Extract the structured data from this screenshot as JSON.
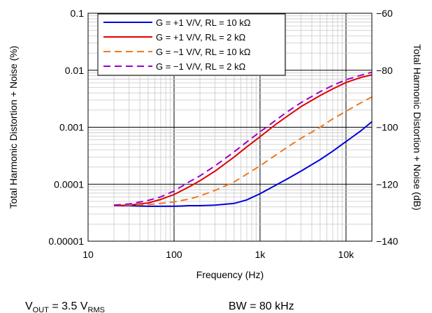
{
  "chart_data": {
    "type": "line",
    "title": "",
    "xlabel": "Frequency (Hz)",
    "ylabel": "Total Harmonic Distortion + Noise (%)",
    "ylabel_right": "Total Harmonic Distortion + Noise (dB)",
    "x_scale": "log",
    "y_scale": "log",
    "xlim": [
      10,
      20000
    ],
    "ylim": [
      1e-05,
      0.1
    ],
    "ylim_right": [
      -140,
      -60
    ],
    "grid": true,
    "legend_position": "top",
    "x_ticks": [
      10,
      100,
      1000,
      10000
    ],
    "x_tick_labels": [
      "10",
      "100",
      "1k",
      "10k"
    ],
    "y_ticks": [
      1e-05,
      0.0001,
      0.001,
      0.01,
      0.1
    ],
    "y_tick_labels": [
      "0.00001",
      "0.0001",
      "0.001",
      "0.01",
      "0.1"
    ],
    "y_ticks_right": [
      -140,
      -120,
      -100,
      -80,
      -60
    ],
    "y_tick_labels_right": [
      "−140",
      "−120",
      "−100",
      "−80",
      "−60"
    ],
    "series": [
      {
        "name": "G = +1 V/V, RL = 10 kΩ",
        "color": "#0000dd",
        "dash": "solid",
        "x": [
          20,
          30,
          50,
          70,
          100,
          150,
          200,
          300,
          500,
          700,
          1000,
          1500,
          2000,
          3000,
          5000,
          7000,
          10000,
          15000,
          20000
        ],
        "y": [
          4.2e-05,
          4.2e-05,
          4.1e-05,
          4.1e-05,
          4.1e-05,
          4.2e-05,
          4.2e-05,
          4.3e-05,
          4.6e-05,
          5.3e-05,
          6.8e-05,
          9.5e-05,
          0.00012,
          0.00017,
          0.00027,
          0.00038,
          0.00056,
          0.00087,
          0.00125
        ]
      },
      {
        "name": "G = +1 V/V, RL = 2 kΩ",
        "color": "#e00000",
        "dash": "solid",
        "x": [
          20,
          30,
          50,
          70,
          100,
          150,
          200,
          300,
          500,
          700,
          1000,
          1500,
          2000,
          3000,
          5000,
          7000,
          10000,
          15000,
          20000
        ],
        "y": [
          4.2e-05,
          4.3e-05,
          4.7e-05,
          5.4e-05,
          6.6e-05,
          9e-05,
          0.000115,
          0.00017,
          0.0003,
          0.00045,
          0.00068,
          0.0011,
          0.0015,
          0.0023,
          0.0036,
          0.0047,
          0.0061,
          0.0075,
          0.0083
        ]
      },
      {
        "name": "G = −1 V/V, RL = 10 kΩ",
        "color": "#f07820",
        "dash": "dashed",
        "x": [
          20,
          30,
          50,
          70,
          100,
          150,
          200,
          300,
          500,
          700,
          1000,
          1500,
          2000,
          3000,
          5000,
          7000,
          10000,
          15000,
          20000
        ],
        "y": [
          4.3e-05,
          4.3e-05,
          4.4e-05,
          4.6e-05,
          4.9e-05,
          5.5e-05,
          6.2e-05,
          7.8e-05,
          0.00011,
          0.00015,
          0.00021,
          0.00032,
          0.00043,
          0.00064,
          0.001,
          0.0014,
          0.0019,
          0.0027,
          0.0034
        ]
      },
      {
        "name": "G = −1 V/V, RL = 2 kΩ",
        "color": "#9900cc",
        "dash": "dashed",
        "x": [
          20,
          30,
          50,
          70,
          100,
          150,
          200,
          300,
          500,
          700,
          1000,
          1500,
          2000,
          3000,
          5000,
          7000,
          10000,
          15000,
          20000
        ],
        "y": [
          4.3e-05,
          4.5e-05,
          5.2e-05,
          6e-05,
          7.6e-05,
          0.00011,
          0.00014,
          0.00021,
          0.00037,
          0.00055,
          0.00083,
          0.0013,
          0.0018,
          0.0027,
          0.0042,
          0.0054,
          0.0068,
          0.0082,
          0.0092
        ]
      }
    ]
  },
  "notes": {
    "vout": {
      "main": "V",
      "sub1": "OUT",
      "mid": " = 3.5 V",
      "sub2": "RMS"
    },
    "bw": "BW = 80 kHz"
  }
}
